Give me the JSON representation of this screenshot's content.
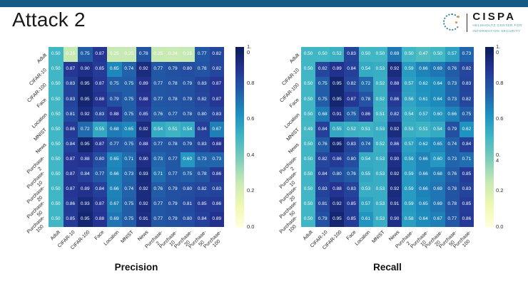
{
  "slide": {
    "title": "Attack 2",
    "top_bar_color": "#175b84",
    "background_color": "#ffffff"
  },
  "logo": {
    "name": "CISPA",
    "subtitle_line1": "HELMHOLTZ CENTER FOR",
    "subtitle_line2": "INFORMATION SECURITY",
    "subtitle_color": "#4b9fae",
    "mark_icon": "dotted-circle-c-icon",
    "mark_primary_color": "#44809e",
    "mark_accent_color": "#e2954a"
  },
  "colormap": {
    "name": "YlGnBu",
    "stops": [
      [
        0.0,
        "#ffffd9"
      ],
      [
        0.125,
        "#edf8b1"
      ],
      [
        0.25,
        "#c7e9b4"
      ],
      [
        0.375,
        "#7fcdbb"
      ],
      [
        0.5,
        "#41b6c4"
      ],
      [
        0.625,
        "#1d91c0"
      ],
      [
        0.75,
        "#225ea8"
      ],
      [
        0.875,
        "#253494"
      ],
      [
        1.0,
        "#081d58"
      ]
    ]
  },
  "chart_data": [
    {
      "type": "heatmap",
      "title": "Precision",
      "colormap": "YlGnBu",
      "vmin": 0.0,
      "vmax": 1.0,
      "rows": [
        "Adult",
        "CIFAR-10",
        "CIFAR-100",
        "Face",
        "Location",
        "MNIST",
        "News",
        "Purchase-\n2",
        "Purchase-\n10",
        "Purchase-\n20",
        "Purchase-\n50",
        "Purchase-\n100"
      ],
      "cols": [
        "Adult",
        "CIFAR-10",
        "CIFAR-100",
        "Face",
        "Location",
        "MNIST",
        "News",
        "Purchase-\n2",
        "Purchase-\n10",
        "Purchase-\n20",
        "Purchase-\n50",
        "Purchase-\n100"
      ],
      "values": [
        [
          0.5,
          0.25,
          0.75,
          0.87,
          0.25,
          0.25,
          0.78,
          0.25,
          0.24,
          0.25,
          0.77,
          0.82
        ],
        [
          0.5,
          0.87,
          0.9,
          0.85,
          0.65,
          0.74,
          0.92,
          0.77,
          0.79,
          0.8,
          0.78,
          0.82
        ],
        [
          0.5,
          0.83,
          0.95,
          0.87,
          0.75,
          0.75,
          0.89,
          0.77,
          0.78,
          0.79,
          0.83,
          0.87
        ],
        [
          0.5,
          0.83,
          0.95,
          0.88,
          0.79,
          0.75,
          0.88,
          0.77,
          0.78,
          0.79,
          0.82,
          0.87
        ],
        [
          0.5,
          0.81,
          0.92,
          0.83,
          0.88,
          0.75,
          0.85,
          0.76,
          0.77,
          0.78,
          0.8,
          0.83
        ],
        [
          0.5,
          0.86,
          0.72,
          0.55,
          0.68,
          0.65,
          0.92,
          0.54,
          0.51,
          0.54,
          0.84,
          0.67
        ],
        [
          0.5,
          0.84,
          0.95,
          0.87,
          0.77,
          0.75,
          0.88,
          0.77,
          0.78,
          0.79,
          0.83,
          0.88
        ],
        [
          0.5,
          0.87,
          0.88,
          0.8,
          0.65,
          0.71,
          0.9,
          0.73,
          0.77,
          0.6,
          0.73,
          0.73
        ],
        [
          0.5,
          0.87,
          0.84,
          0.77,
          0.66,
          0.73,
          0.93,
          0.71,
          0.77,
          0.75,
          0.78,
          0.86
        ],
        [
          0.5,
          0.87,
          0.89,
          0.84,
          0.66,
          0.74,
          0.92,
          0.76,
          0.79,
          0.8,
          0.82,
          0.83
        ],
        [
          0.5,
          0.86,
          0.93,
          0.87,
          0.67,
          0.75,
          0.92,
          0.77,
          0.79,
          0.81,
          0.85,
          0.86
        ],
        [
          0.5,
          0.85,
          0.95,
          0.88,
          0.69,
          0.75,
          0.91,
          0.77,
          0.79,
          0.8,
          0.84,
          0.89
        ]
      ],
      "colorbar_ticks": [
        {
          "value": 1.0,
          "label": "1.\n0"
        },
        {
          "value": 0.8,
          "label": "0.8"
        },
        {
          "value": 0.6,
          "label": "0.6"
        },
        {
          "value": 0.4,
          "label": "0.4"
        },
        {
          "value": 0.2,
          "label": "0.2"
        },
        {
          "value": 0.0,
          "label": "0.0"
        }
      ]
    },
    {
      "type": "heatmap",
      "title": "Recall",
      "colormap": "YlGnBu",
      "vmin": 0.0,
      "vmax": 1.0,
      "rows": [
        "Adult",
        "CIFAR-10",
        "CIFAR-100",
        "Face",
        "Location",
        "MNIST",
        "News",
        "Purchase-\n2",
        "Purchase-\n10",
        "Purchase-\n20",
        "Purchase-\n50",
        "Purchase-\n100"
      ],
      "cols": [
        "Adult",
        "CIFAR-10",
        "CIFAR-100",
        "Face",
        "Location",
        "MNIST",
        "News",
        "Purchase-\n2",
        "Purchase-\n10",
        "Purchase-\n20",
        "Purchase-\n50",
        "Purchase-\n100"
      ],
      "values": [
        [
          0.5,
          0.5,
          0.52,
          0.83,
          0.5,
          0.5,
          0.69,
          0.5,
          0.47,
          0.5,
          0.57,
          0.73
        ],
        [
          0.5,
          0.82,
          0.89,
          0.84,
          0.54,
          0.53,
          0.92,
          0.59,
          0.66,
          0.69,
          0.76,
          0.82
        ],
        [
          0.5,
          0.75,
          0.95,
          0.82,
          0.72,
          0.52,
          0.88,
          0.57,
          0.62,
          0.64,
          0.73,
          0.83
        ],
        [
          0.5,
          0.75,
          0.95,
          0.87,
          0.78,
          0.52,
          0.86,
          0.56,
          0.61,
          0.64,
          0.73,
          0.82
        ],
        [
          0.5,
          0.68,
          0.91,
          0.75,
          0.86,
          0.51,
          0.82,
          0.54,
          0.57,
          0.6,
          0.66,
          0.75
        ],
        [
          0.49,
          0.84,
          0.55,
          0.52,
          0.51,
          0.53,
          0.92,
          0.53,
          0.51,
          0.54,
          0.79,
          0.62
        ],
        [
          0.5,
          0.76,
          0.95,
          0.83,
          0.74,
          0.52,
          0.86,
          0.57,
          0.62,
          0.65,
          0.74,
          0.84
        ],
        [
          0.5,
          0.82,
          0.86,
          0.8,
          0.54,
          0.53,
          0.9,
          0.59,
          0.66,
          0.6,
          0.73,
          0.71
        ],
        [
          0.5,
          0.84,
          0.8,
          0.76,
          0.55,
          0.53,
          0.92,
          0.59,
          0.66,
          0.68,
          0.76,
          0.85
        ],
        [
          0.5,
          0.83,
          0.88,
          0.83,
          0.53,
          0.53,
          0.92,
          0.59,
          0.66,
          0.69,
          0.78,
          0.83
        ],
        [
          0.5,
          0.81,
          0.92,
          0.85,
          0.57,
          0.53,
          0.91,
          0.59,
          0.65,
          0.69,
          0.78,
          0.85
        ],
        [
          0.5,
          0.79,
          0.95,
          0.85,
          0.61,
          0.53,
          0.9,
          0.58,
          0.64,
          0.67,
          0.77,
          0.86
        ]
      ],
      "colorbar_ticks": [
        {
          "value": 1.0,
          "label": "1.\n0"
        },
        {
          "value": 0.8,
          "label": "0.8"
        },
        {
          "value": 0.6,
          "label": "0.6"
        },
        {
          "value": 0.4,
          "label": "0.\n4"
        },
        {
          "value": 0.2,
          "label": "0.2"
        },
        {
          "value": 0.0,
          "label": "0.0"
        }
      ]
    }
  ]
}
